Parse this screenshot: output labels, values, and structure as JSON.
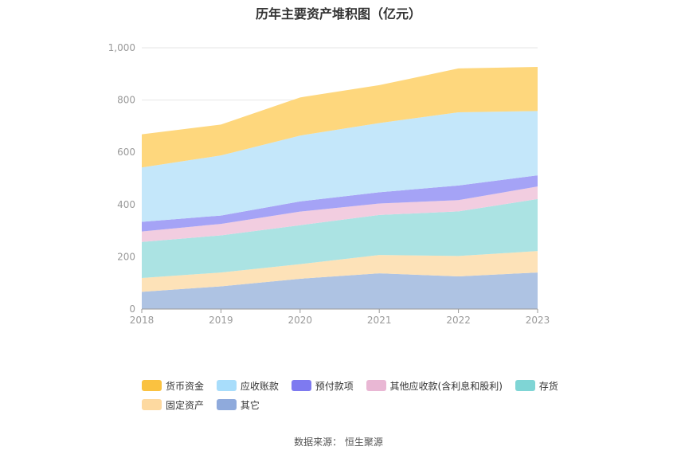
{
  "title": "历年主要资产堆积图（亿元）",
  "source": "数据来源：  恒生聚源",
  "chart_data": {
    "type": "area",
    "stacked": true,
    "x": [
      "2018",
      "2019",
      "2020",
      "2021",
      "2022",
      "2023"
    ],
    "ylim": [
      0,
      1000
    ],
    "yticks": [
      0,
      200,
      400,
      600,
      800,
      1000
    ],
    "ytick_labels": [
      "0",
      "200",
      "400",
      "600",
      "800",
      "1,000"
    ],
    "grid": true,
    "legend_position": "bottom",
    "series": [
      {
        "name": "其它",
        "color": "#aec3e3",
        "values": [
          66,
          87,
          116,
          137,
          125,
          140
        ]
      },
      {
        "name": "固定资产",
        "color": "#fde2b8",
        "values": [
          53,
          53,
          56,
          70,
          78,
          82
        ]
      },
      {
        "name": "存货",
        "color": "#abe3e3",
        "values": [
          138,
          142,
          149,
          153,
          171,
          199
        ]
      },
      {
        "name": "其他应收款(含利息和股利)",
        "color": "#f2cde0",
        "values": [
          40,
          44,
          52,
          44,
          43,
          48
        ]
      },
      {
        "name": "预付款项",
        "color": "#a5a3f6",
        "values": [
          37,
          32,
          39,
          43,
          56,
          43
        ]
      },
      {
        "name": "应收账款",
        "color": "#c4e7fa",
        "values": [
          208,
          230,
          252,
          265,
          280,
          246
        ]
      },
      {
        "name": "货币资金",
        "color": "#fed77d",
        "values": [
          127,
          118,
          146,
          145,
          168,
          169
        ]
      }
    ]
  },
  "legend": [
    {
      "label": "货币资金",
      "color": "#fac240"
    },
    {
      "label": "应收账款",
      "color": "#a8ddfb"
    },
    {
      "label": "预付款项",
      "color": "#7e7af0"
    },
    {
      "label": "其他应收款(含利息和股利)",
      "color": "#e9b7d4"
    },
    {
      "label": "存货",
      "color": "#7fd5d5"
    },
    {
      "label": "固定资产",
      "color": "#fdd9a0"
    },
    {
      "label": "其它",
      "color": "#8faadc"
    }
  ]
}
